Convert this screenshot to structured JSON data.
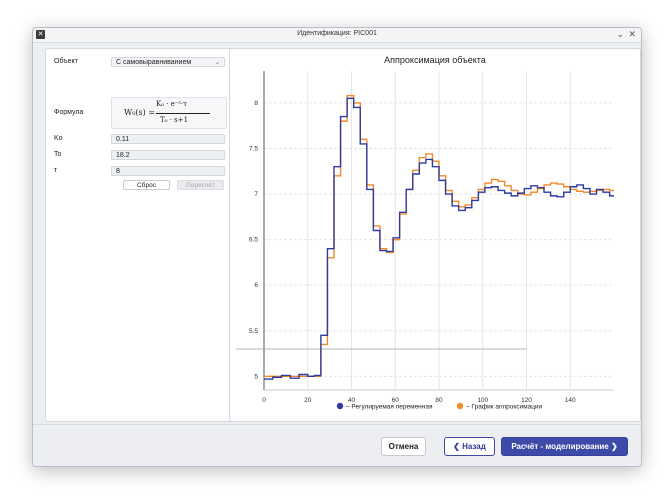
{
  "window": {
    "title": "Идентификация: PIC001",
    "app_icon": "x-app-icon"
  },
  "form": {
    "object_label": "Объект",
    "object_value": "С самовыравниванием",
    "formula_label": "Формула",
    "formula": {
      "lhs": "W₀(s) =",
      "numerator": "K₀ · e⁻ˢ·τ",
      "denominator": "T₀ · s+1"
    },
    "ko_label": "Ko",
    "ko_value": "0.11",
    "to_label": "To",
    "to_value": "18.2",
    "tau_label": "τ",
    "tau_value": "8",
    "reset_label": "Сброс",
    "recalc_label": "Пересчёт"
  },
  "chart": {
    "title": "Аппроксимация объекта"
  },
  "chart_data": {
    "type": "line",
    "title": "Аппроксимация объекта",
    "xlim": [
      0,
      160
    ],
    "ylim": [
      4.85,
      8.35
    ],
    "x_ticks": [
      0,
      20,
      40,
      60,
      80,
      100,
      120,
      140
    ],
    "y_ticks": [
      5,
      5.5,
      6,
      6.5,
      7,
      7.5,
      8
    ],
    "grid": true,
    "legend_position": "bottom",
    "series": [
      {
        "name": "Регулируемая переменная",
        "color": "#2f3a9e",
        "style": "step",
        "x": [
          0,
          4,
          8,
          12,
          16,
          20,
          23,
          26,
          29,
          32,
          35,
          38,
          41,
          44,
          47,
          50,
          53,
          56,
          59,
          62,
          65,
          68,
          71,
          74,
          77,
          80,
          83,
          86,
          89,
          92,
          95,
          98,
          101,
          104,
          107,
          110,
          113,
          116,
          119,
          122,
          125,
          128,
          131,
          134,
          137,
          140,
          143,
          146,
          149,
          152,
          155,
          158
        ],
        "y": [
          4.97,
          4.99,
          5.01,
          4.98,
          5.02,
          5.0,
          5.01,
          5.45,
          6.4,
          7.3,
          7.85,
          8.05,
          7.95,
          7.55,
          7.05,
          6.6,
          6.38,
          6.37,
          6.52,
          6.8,
          7.05,
          7.22,
          7.34,
          7.38,
          7.3,
          7.15,
          7.0,
          6.87,
          6.82,
          6.85,
          6.93,
          7.02,
          7.07,
          7.08,
          7.04,
          7.01,
          6.98,
          7.01,
          7.06,
          7.09,
          7.07,
          7.02,
          6.98,
          6.97,
          7.02,
          7.08,
          7.1,
          7.06,
          7.0,
          7.05,
          7.02,
          6.98
        ]
      },
      {
        "name": "График аппроксимации",
        "color": "#f08a2b",
        "style": "step",
        "x": [
          0,
          4,
          8,
          12,
          16,
          20,
          23,
          26,
          29,
          32,
          35,
          38,
          41,
          44,
          47,
          50,
          53,
          56,
          59,
          62,
          65,
          68,
          71,
          74,
          77,
          80,
          83,
          86,
          89,
          92,
          95,
          98,
          101,
          104,
          107,
          110,
          113,
          116,
          119,
          122,
          125,
          128,
          131,
          134,
          137,
          140,
          143,
          146,
          149,
          152,
          155,
          158
        ],
        "y": [
          5.0,
          5.0,
          5.0,
          5.0,
          5.0,
          5.0,
          5.0,
          5.35,
          6.3,
          7.2,
          7.8,
          8.08,
          8.0,
          7.6,
          7.1,
          6.65,
          6.4,
          6.36,
          6.5,
          6.78,
          7.05,
          7.26,
          7.4,
          7.44,
          7.36,
          7.2,
          7.04,
          6.92,
          6.86,
          6.88,
          6.96,
          7.05,
          7.12,
          7.16,
          7.14,
          7.09,
          7.04,
          7.0,
          6.99,
          7.02,
          7.06,
          7.1,
          7.12,
          7.11,
          7.08,
          7.05,
          7.03,
          7.02,
          7.03,
          7.04,
          7.05,
          7.04
        ]
      }
    ],
    "reference_line_y": 5.3
  },
  "bottom": {
    "cancel_label": "Отмена",
    "back_label": "Назад",
    "calc_label": "Расчёт - моделирование"
  }
}
